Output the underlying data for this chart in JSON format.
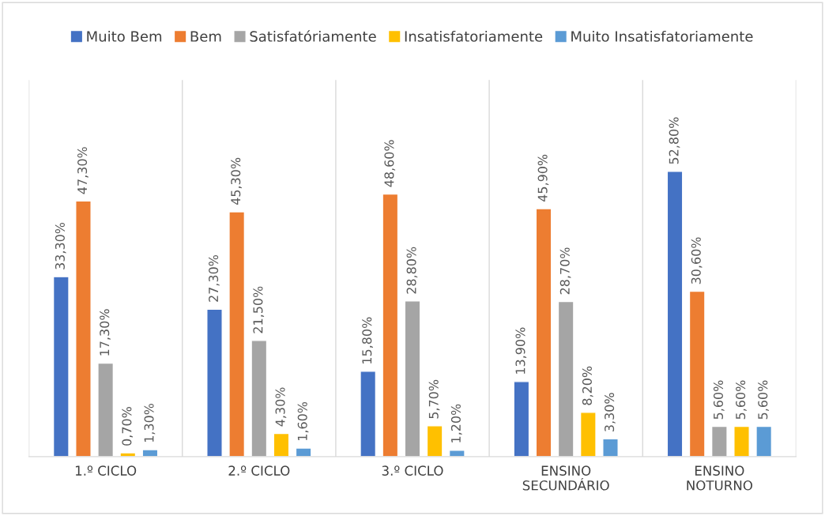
{
  "chart_data": {
    "type": "bar",
    "categories": [
      "1.º CICLO",
      "2.º CICLO",
      "3.º CICLO",
      "ENSINO SECUNDÁRIO",
      "ENSINO NOTURNO"
    ],
    "series": [
      {
        "name": "Muito Bem",
        "color": "#4472c4",
        "values": [
          33.3,
          27.3,
          15.8,
          13.9,
          52.8
        ],
        "value_labels": [
          "33,30%",
          "27,30%",
          "15,80%",
          "13,90%",
          "52,80%"
        ]
      },
      {
        "name": "Bem",
        "color": "#ed7d31",
        "values": [
          47.3,
          45.3,
          48.6,
          45.9,
          30.6
        ],
        "value_labels": [
          "47,30%",
          "45,30%",
          "48,60%",
          "45,90%",
          "30,60%"
        ]
      },
      {
        "name": "Satisfatóriamente",
        "color": "#a5a5a5",
        "values": [
          17.3,
          21.5,
          28.8,
          28.7,
          5.6
        ],
        "value_labels": [
          "17,30%",
          "21,50%",
          "28,80%",
          "28,70%",
          "5,60%"
        ]
      },
      {
        "name": "Insatisfatoriamente",
        "color": "#ffc000",
        "values": [
          0.7,
          4.3,
          5.7,
          8.2,
          5.6
        ],
        "value_labels": [
          "0,70%",
          "4,30%",
          "5,70%",
          "8,20%",
          "5,60%"
        ]
      },
      {
        "name": "Muito Insatisfatoriamente",
        "color": "#5b9bd5",
        "values": [
          1.3,
          1.6,
          1.2,
          3.3,
          5.6
        ],
        "value_labels": [
          "1,30%",
          "1,60%",
          "1,20%",
          "3,30%",
          "5,60%"
        ]
      }
    ],
    "grid": "x",
    "legend": "top",
    "tick_labels": "x"
  }
}
